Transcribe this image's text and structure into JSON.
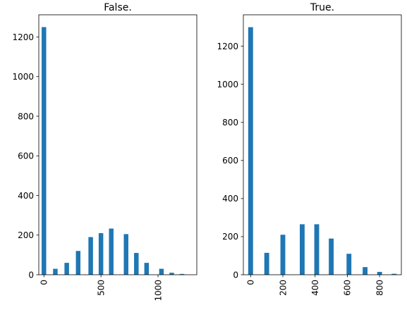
{
  "chart_data": [
    {
      "type": "bar",
      "title": "False.",
      "xlabel": "",
      "ylabel": "",
      "xlim": [
        -45,
        1340
      ],
      "ylim": [
        0,
        1312
      ],
      "x_ticks": [
        0,
        500,
        1000
      ],
      "y_ticks": [
        0,
        200,
        400,
        600,
        800,
        1000,
        1200
      ],
      "bar_width": 40,
      "bar_color": "#1f77b4",
      "bars": [
        {
          "x": 0,
          "value": 1250
        },
        {
          "x": 100,
          "value": 30
        },
        {
          "x": 200,
          "value": 60
        },
        {
          "x": 300,
          "value": 120
        },
        {
          "x": 410,
          "value": 190
        },
        {
          "x": 500,
          "value": 210
        },
        {
          "x": 590,
          "value": 233
        },
        {
          "x": 720,
          "value": 205
        },
        {
          "x": 810,
          "value": 110
        },
        {
          "x": 900,
          "value": 60
        },
        {
          "x": 1030,
          "value": 30
        },
        {
          "x": 1120,
          "value": 10
        },
        {
          "x": 1210,
          "value": 4
        }
      ],
      "grid": false
    },
    {
      "type": "bar",
      "title": "True.",
      "xlabel": "",
      "ylabel": "",
      "xlim": [
        -45,
        935
      ],
      "ylim": [
        0,
        1365
      ],
      "x_ticks": [
        0,
        200,
        400,
        600,
        800
      ],
      "y_ticks": [
        0,
        200,
        400,
        600,
        800,
        1000,
        1200
      ],
      "bar_width": 30,
      "bar_color": "#1f77b4",
      "bars": [
        {
          "x": 0,
          "value": 1300
        },
        {
          "x": 100,
          "value": 115
        },
        {
          "x": 200,
          "value": 210
        },
        {
          "x": 320,
          "value": 265
        },
        {
          "x": 410,
          "value": 265
        },
        {
          "x": 500,
          "value": 190
        },
        {
          "x": 610,
          "value": 110
        },
        {
          "x": 710,
          "value": 40
        },
        {
          "x": 800,
          "value": 15
        },
        {
          "x": 890,
          "value": 5
        }
      ],
      "grid": false
    }
  ]
}
